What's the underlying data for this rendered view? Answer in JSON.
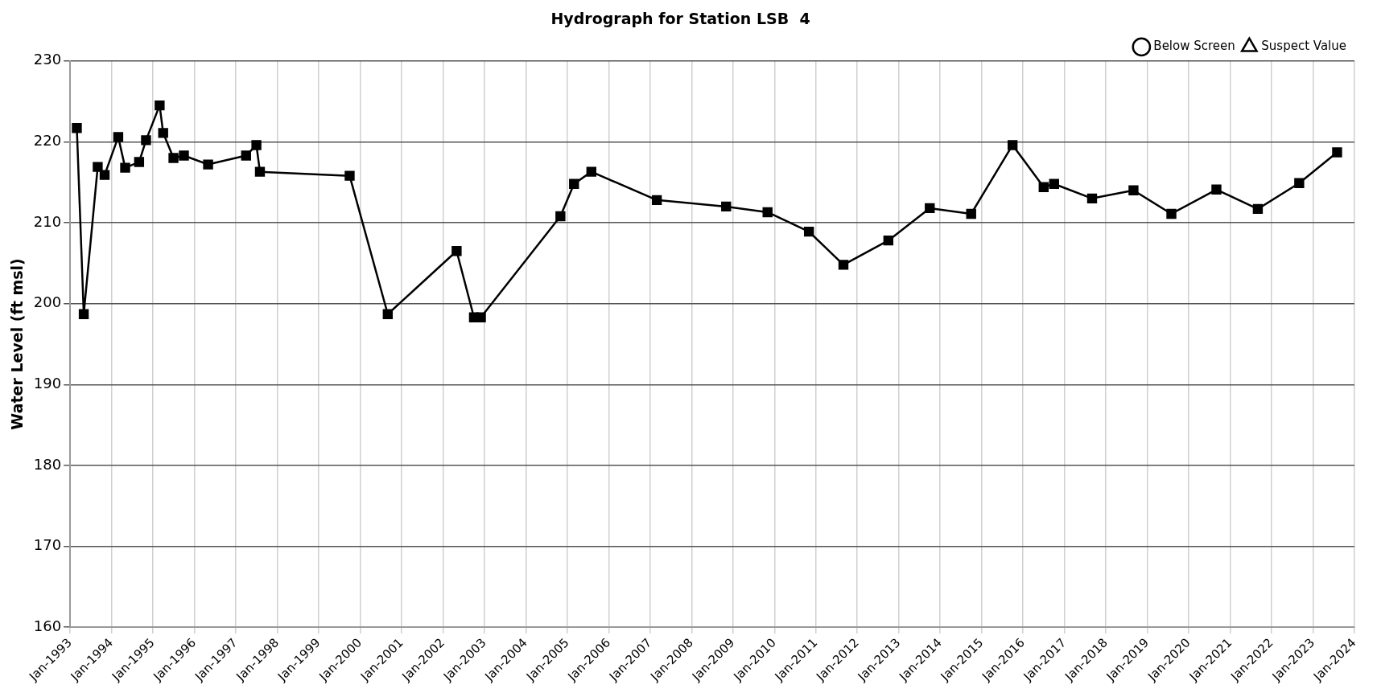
{
  "chart_data": {
    "type": "line",
    "title": "Hydrograph for Station LSB  4",
    "ylabel": "Water Level (ft msl)",
    "x": [
      "1993-03",
      "1993-05",
      "1993-09",
      "1993-11",
      "1994-03",
      "1994-05",
      "1994-09",
      "1994-11",
      "1995-03",
      "1995-04",
      "1995-07",
      "1995-10",
      "1996-05",
      "1997-04",
      "1997-07",
      "1997-08",
      "1999-10",
      "2000-09",
      "2002-05",
      "2002-10",
      "2002-12",
      "2004-11",
      "2005-03",
      "2005-08",
      "2007-03",
      "2008-11",
      "2009-11",
      "2010-11",
      "2011-09",
      "2012-10",
      "2013-10",
      "2014-10",
      "2015-10",
      "2016-07",
      "2016-10",
      "2017-09",
      "2018-09",
      "2019-08",
      "2020-09",
      "2021-09",
      "2022-09",
      "2023-08"
    ],
    "series": [
      {
        "color": "#000000",
        "marker": "square",
        "values": [
          221.7,
          198.7,
          216.9,
          215.9,
          220.6,
          216.8,
          217.5,
          220.2,
          224.5,
          221.1,
          218.0,
          218.3,
          217.2,
          218.3,
          219.6,
          216.3,
          215.8,
          198.7,
          206.5,
          198.3,
          198.3,
          210.8,
          214.8,
          216.3,
          212.8,
          212.0,
          211.3,
          208.9,
          204.8,
          207.8,
          211.8,
          211.1,
          219.6,
          214.4,
          214.8,
          213.0,
          214.0,
          211.1,
          214.1,
          211.7,
          214.9,
          218.7
        ]
      },
      {
        "name": "Below Screen",
        "color": "#000000",
        "marker": "circle",
        "values": [
          null,
          null,
          null,
          null,
          null,
          null,
          null,
          null,
          null,
          null,
          null,
          null,
          null,
          null,
          null,
          null,
          null,
          null,
          null,
          null,
          null,
          null,
          null,
          null,
          null,
          null,
          null,
          null,
          null,
          null,
          null,
          null,
          null,
          null,
          null,
          null,
          null,
          null,
          null,
          null,
          null,
          null
        ]
      },
      {
        "name": "Suspect Value",
        "color": "#000000",
        "marker": "triangle",
        "values": [
          null,
          null,
          null,
          null,
          null,
          null,
          null,
          null,
          null,
          null,
          null,
          null,
          null,
          null,
          null,
          null,
          null,
          null,
          null,
          null,
          null,
          null,
          null,
          null,
          null,
          null,
          null,
          null,
          null,
          null,
          null,
          null,
          null,
          null,
          null,
          null,
          null,
          null,
          null,
          null,
          null,
          null
        ]
      }
    ],
    "xlim": [
      "1993-01",
      "2024-01"
    ],
    "xticks": [
      {
        "value": "1993-01",
        "label": "Jan-1993"
      },
      {
        "value": "1994-01",
        "label": "Jan-1994"
      },
      {
        "value": "1995-01",
        "label": "Jan-1995"
      },
      {
        "value": "1996-01",
        "label": "Jan-1996"
      },
      {
        "value": "1997-01",
        "label": "Jan-1997"
      },
      {
        "value": "1998-01",
        "label": "Jan-1998"
      },
      {
        "value": "1999-01",
        "label": "Jan-1999"
      },
      {
        "value": "2000-01",
        "label": "Jan-2000"
      },
      {
        "value": "2001-01",
        "label": "Jan-2001"
      },
      {
        "value": "2002-01",
        "label": "Jan-2002"
      },
      {
        "value": "2003-01",
        "label": "Jan-2003"
      },
      {
        "value": "2004-01",
        "label": "Jan-2004"
      },
      {
        "value": "2005-01",
        "label": "Jan-2005"
      },
      {
        "value": "2006-01",
        "label": "Jan-2006"
      },
      {
        "value": "2007-01",
        "label": "Jan-2007"
      },
      {
        "value": "2008-01",
        "label": "Jan-2008"
      },
      {
        "value": "2009-01",
        "label": "Jan-2009"
      },
      {
        "value": "2010-01",
        "label": "Jan-2010"
      },
      {
        "value": "2011-01",
        "label": "Jan-2011"
      },
      {
        "value": "2012-01",
        "label": "Jan-2012"
      },
      {
        "value": "2013-01",
        "label": "Jan-2013"
      },
      {
        "value": "2014-01",
        "label": "Jan-2014"
      },
      {
        "value": "2015-01",
        "label": "Jan-2015"
      },
      {
        "value": "2016-01",
        "label": "Jan-2016"
      },
      {
        "value": "2017-01",
        "label": "Jan-2017"
      },
      {
        "value": "2018-01",
        "label": "Jan-2018"
      },
      {
        "value": "2019-01",
        "label": "Jan-2019"
      },
      {
        "value": "2020-01",
        "label": "Jan-2020"
      },
      {
        "value": "2021-01",
        "label": "Jan-2021"
      },
      {
        "value": "2022-01",
        "label": "Jan-2022"
      },
      {
        "value": "2023-01",
        "label": "Jan-2023"
      },
      {
        "value": "2024-01",
        "label": "Jan-2024"
      }
    ],
    "ylim": [
      160,
      230
    ],
    "yticks": [
      160,
      170,
      180,
      190,
      200,
      210,
      220,
      230
    ],
    "grid": true,
    "legend": "top right",
    "line_style": "solid"
  }
}
